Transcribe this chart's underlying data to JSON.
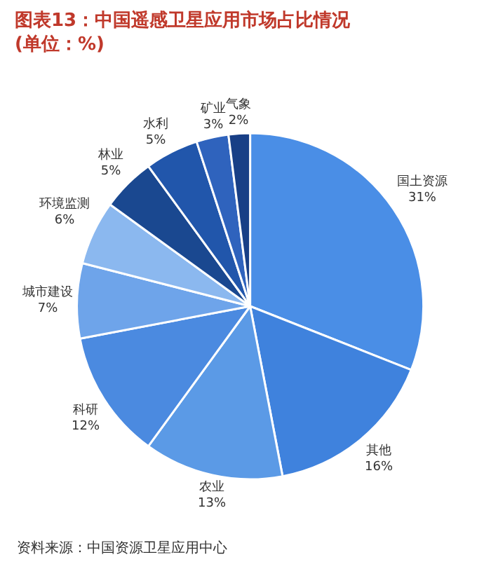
{
  "chart_data": {
    "type": "pie",
    "title": "图表13：中国遥感卫星应用市场占比情况\n(单位：%)",
    "categories": [
      "国土资源",
      "其他",
      "农业",
      "科研",
      "城市建设",
      "环境监测",
      "林业",
      "水利",
      "矿业",
      "气象"
    ],
    "values": [
      31,
      16,
      13,
      12,
      7,
      6,
      5,
      5,
      3,
      2
    ],
    "value_labels": [
      "31%",
      "16%",
      "13%",
      "12%",
      "7%",
      "6%",
      "5%",
      "5%",
      "3%",
      "2%"
    ],
    "colors": [
      "#4a8ee6",
      "#3f82dd",
      "#5b9ae6",
      "#4b8ae0",
      "#6ea4ea",
      "#8bb8ef",
      "#1a4890",
      "#2156ab",
      "#2f63bd",
      "#183f86"
    ],
    "annotations": [
      "资料来源：中国资源卫星应用中心"
    ],
    "legend": false
  }
}
